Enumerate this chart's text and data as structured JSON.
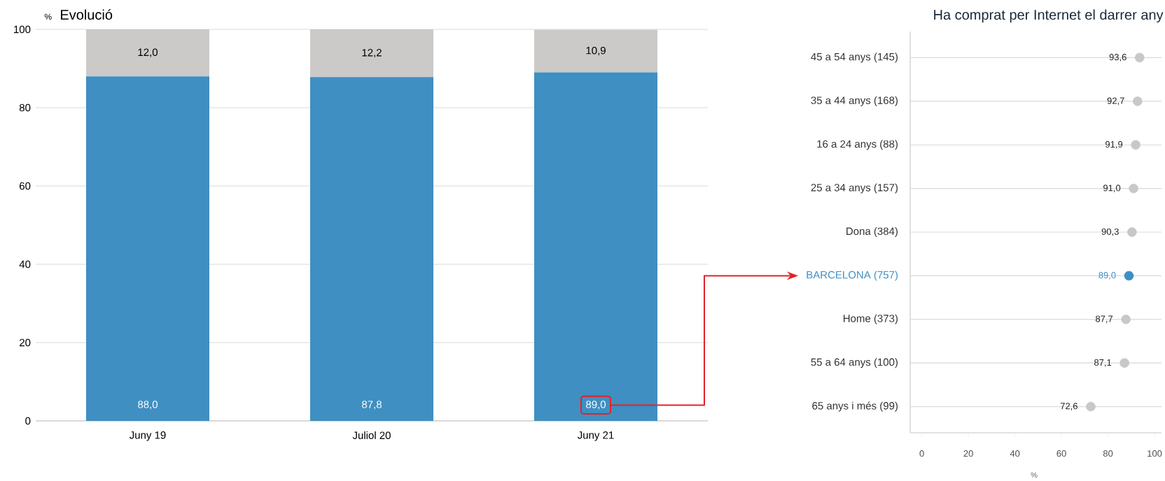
{
  "chart_data": [
    {
      "type": "bar",
      "title": "Evolució",
      "ylabel": "%",
      "categories": [
        "Juny 19",
        "Juliol 20",
        "Juny 21"
      ],
      "stacked": true,
      "series": [
        {
          "color": "#3f8fc2",
          "values": [
            88.0,
            87.8,
            89.0
          ],
          "value_labels": [
            "88,0",
            "87,8",
            "89,0"
          ]
        },
        {
          "color": "#cbcac9",
          "values": [
            12.0,
            12.2,
            10.9
          ],
          "value_labels": [
            "12,0",
            "12,2",
            "10,9"
          ]
        }
      ],
      "ylim": [
        0,
        100
      ],
      "yticks": [
        0,
        20,
        40,
        60,
        80,
        100
      ],
      "grid": "y"
    },
    {
      "type": "scatter",
      "title": "Ha comprat per Internet el darrer any",
      "xlabel": "%",
      "orientation": "horizontal",
      "categories": [
        "45 a 54 anys (145)",
        "35 a 44 anys (168)",
        "16 a 24 anys (88)",
        "25 a 34 anys (157)",
        "Dona (384)",
        "BARCELONA (757)",
        "Home (373)",
        "55 a 64 anys (100)",
        "65 anys i més (99)"
      ],
      "values": [
        93.6,
        92.7,
        91.9,
        91.0,
        90.3,
        89.0,
        87.7,
        87.1,
        72.6
      ],
      "color": "#c8c8c8",
      "colors": [
        "#c8c8c8",
        "#c8c8c8",
        "#c8c8c8",
        "#c8c8c8",
        "#c8c8c8",
        "#3d8fc6",
        "#c8c8c8",
        "#c8c8c8",
        "#c8c8c8"
      ],
      "value_labels": [
        "93,6",
        "92,7",
        "91,9",
        "91,0",
        "90,3",
        "89,0",
        "87,7",
        "87,1",
        "72,6"
      ],
      "xlim": [
        -5,
        103
      ],
      "xticks": [
        0,
        20,
        40,
        60,
        80,
        100
      ],
      "grid": "y",
      "marker": "circle"
    }
  ]
}
